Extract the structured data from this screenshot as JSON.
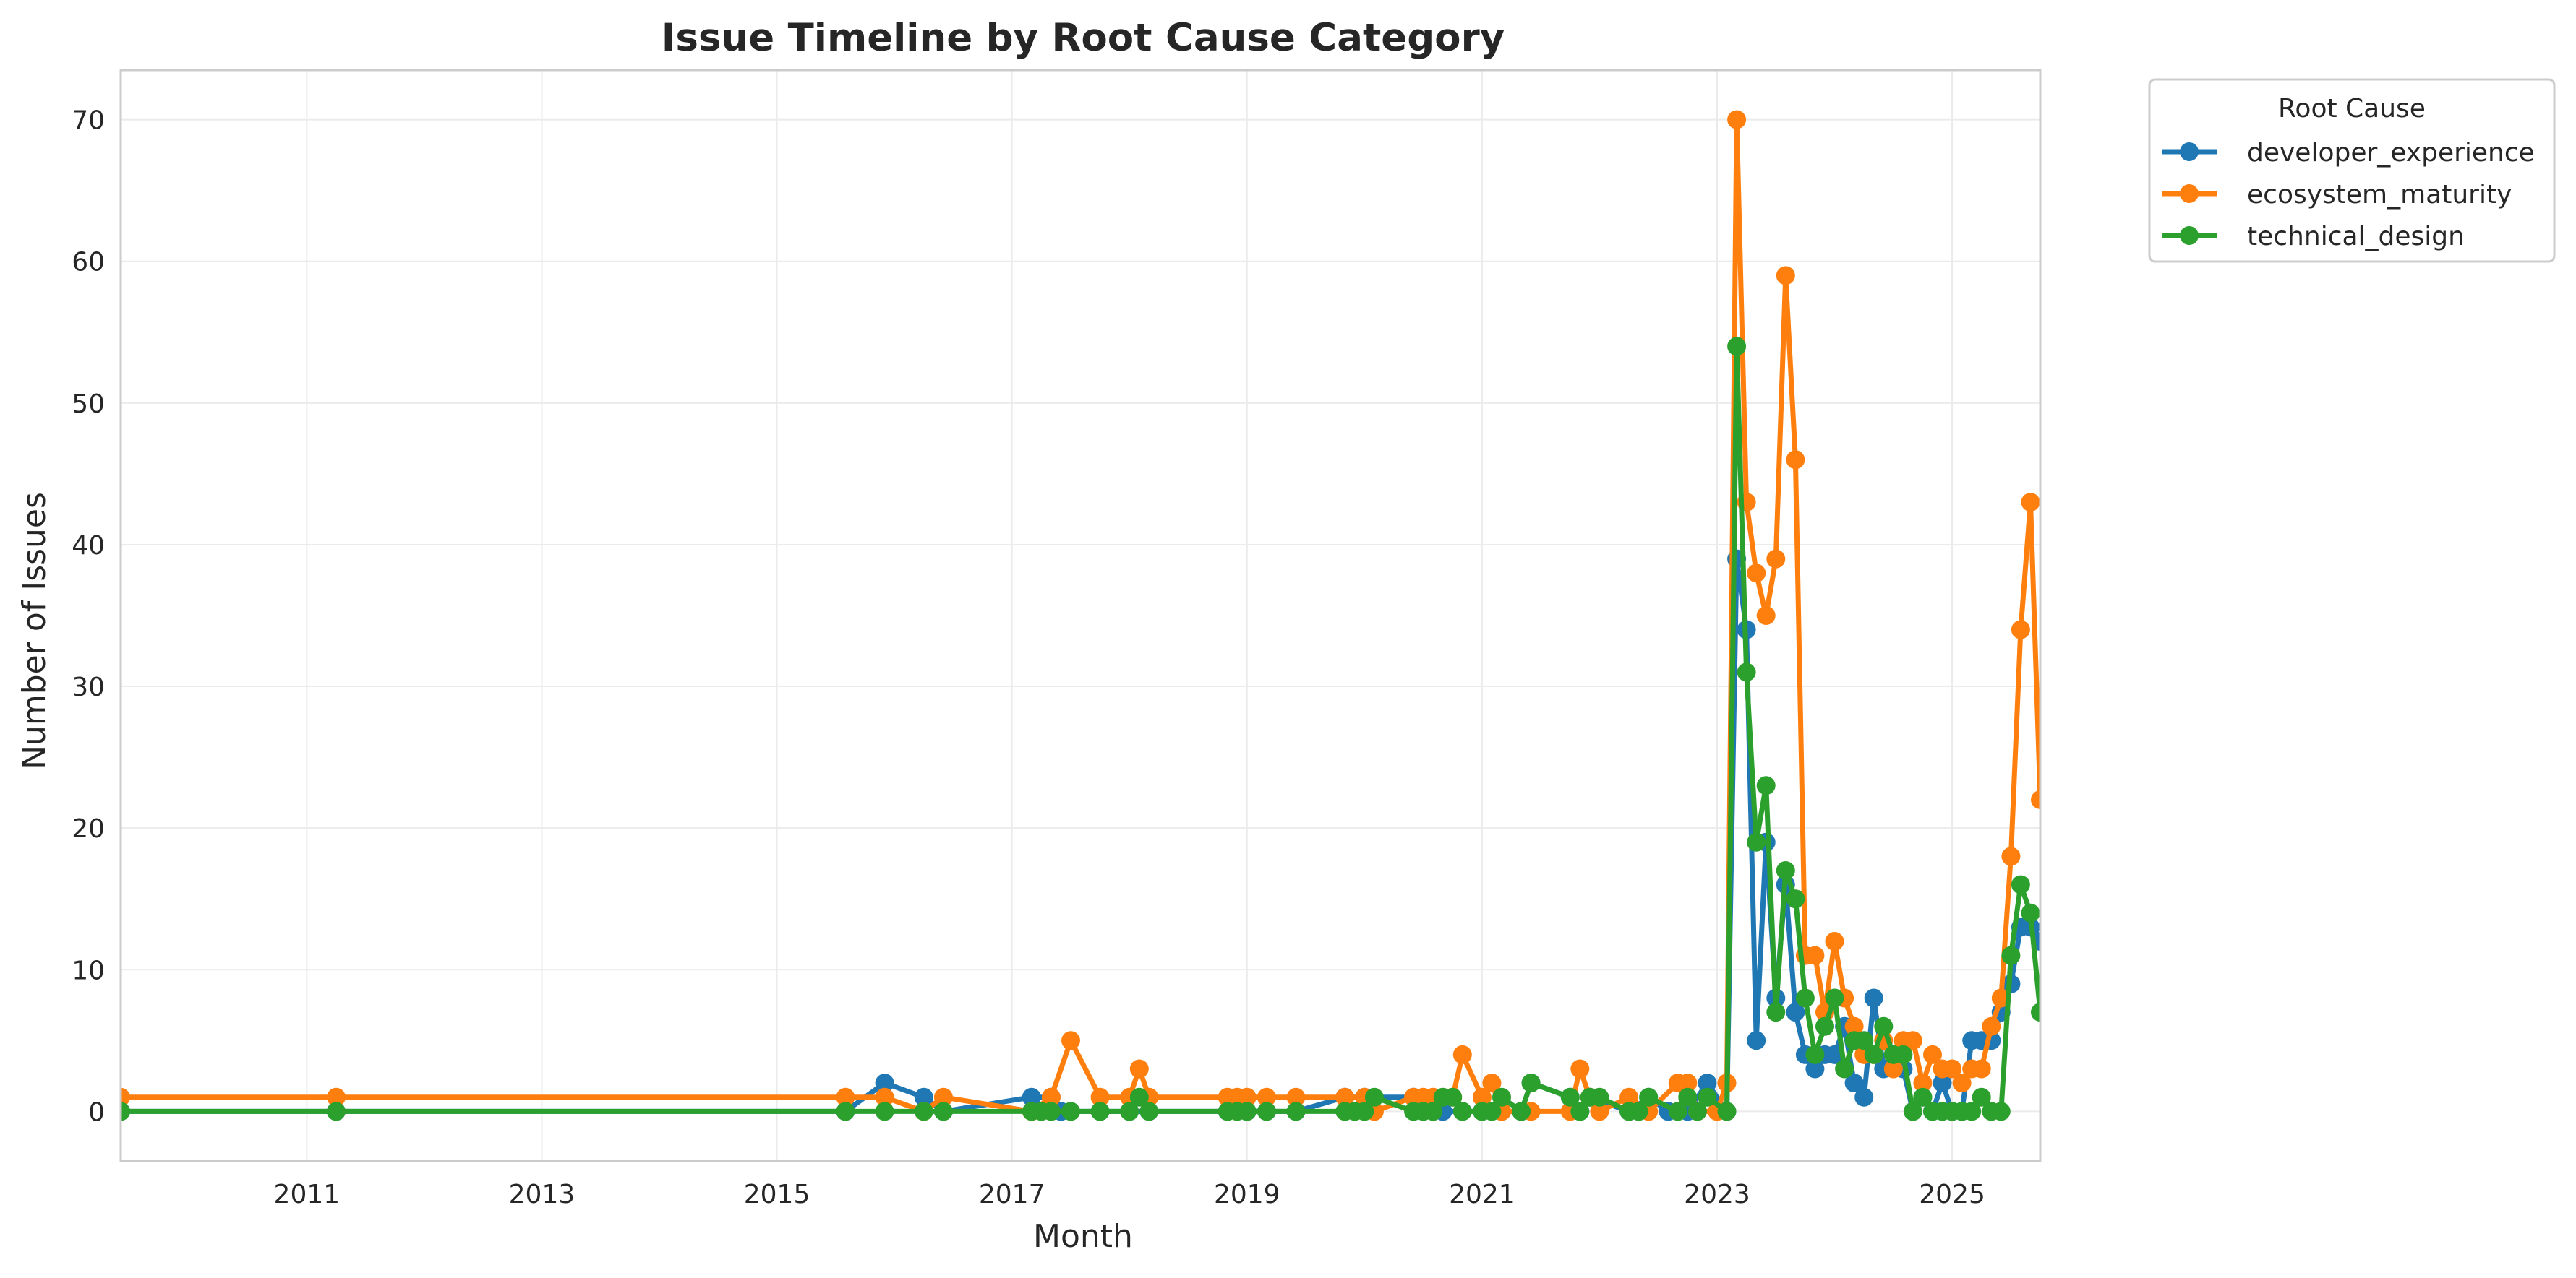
{
  "chart_data": {
    "type": "line",
    "title": "Issue Timeline by Root Cause Category",
    "xlabel": "Month",
    "ylabel": "Number of Issues",
    "x_axis": {
      "type": "date",
      "range": [
        "2009-06",
        "2025-10"
      ],
      "tick_labels": [
        "2011",
        "2013",
        "2015",
        "2017",
        "2019",
        "2021",
        "2023",
        "2025"
      ]
    },
    "y_axis": {
      "range": [
        -3.5,
        73.5
      ],
      "tick_values": [
        0,
        10,
        20,
        30,
        40,
        50,
        60,
        70
      ],
      "tick_labels": [
        "0",
        "10",
        "20",
        "30",
        "40",
        "50",
        "60",
        "70"
      ]
    },
    "grid": true,
    "legend": {
      "title": "Root Cause",
      "placement": "outside top-right"
    },
    "series": [
      {
        "name": "developer_experience",
        "color": "#1f77b4",
        "points": [
          [
            "2009-06",
            0
          ],
          [
            "2011-04",
            0
          ],
          [
            "2015-08",
            0
          ],
          [
            "2015-12",
            2
          ],
          [
            "2016-04",
            1
          ],
          [
            "2016-06",
            0
          ],
          [
            "2017-03",
            1
          ],
          [
            "2017-05",
            1
          ],
          [
            "2017-06",
            0
          ],
          [
            "2017-10",
            0
          ],
          [
            "2018-01",
            0
          ],
          [
            "2018-03",
            0
          ],
          [
            "2018-11",
            0
          ],
          [
            "2019-01",
            0
          ],
          [
            "2019-03",
            0
          ],
          [
            "2019-06",
            0
          ],
          [
            "2019-11",
            1
          ],
          [
            "2020-01",
            1
          ],
          [
            "2020-06",
            1
          ],
          [
            "2020-09",
            0
          ],
          [
            "2020-11",
            0
          ],
          [
            "2021-01",
            0
          ],
          [
            "2021-03",
            0
          ],
          [
            "2021-05",
            0
          ],
          [
            "2021-06",
            2
          ],
          [
            "2021-10",
            1
          ],
          [
            "2021-11",
            0
          ],
          [
            "2021-12",
            1
          ],
          [
            "2022-04",
            0
          ],
          [
            "2022-06",
            1
          ],
          [
            "2022-08",
            0
          ],
          [
            "2022-10",
            0
          ],
          [
            "2022-12",
            2
          ],
          [
            "2023-02",
            0
          ],
          [
            "2023-03",
            39
          ],
          [
            "2023-04",
            34
          ],
          [
            "2023-05",
            5
          ],
          [
            "2023-06",
            19
          ],
          [
            "2023-07",
            8
          ],
          [
            "2023-08",
            16
          ],
          [
            "2023-09",
            7
          ],
          [
            "2023-10",
            4
          ],
          [
            "2023-11",
            3
          ],
          [
            "2023-12",
            4
          ],
          [
            "2024-01",
            4
          ],
          [
            "2024-02",
            6
          ],
          [
            "2024-03",
            2
          ],
          [
            "2024-04",
            1
          ],
          [
            "2024-05",
            8
          ],
          [
            "2024-06",
            3
          ],
          [
            "2024-07",
            4
          ],
          [
            "2024-08",
            3
          ],
          [
            "2024-09",
            0
          ],
          [
            "2024-10",
            1
          ],
          [
            "2024-11",
            0
          ],
          [
            "2024-12",
            2
          ],
          [
            "2025-01",
            0
          ],
          [
            "2025-02",
            0
          ],
          [
            "2025-03",
            5
          ],
          [
            "2025-04",
            5
          ],
          [
            "2025-05",
            5
          ],
          [
            "2025-06",
            7
          ],
          [
            "2025-07",
            9
          ],
          [
            "2025-08",
            13
          ],
          [
            "2025-09",
            13
          ],
          [
            "2025-10",
            12
          ]
        ]
      },
      {
        "name": "ecosystem_maturity",
        "color": "#ff7f0e",
        "points": [
          [
            "2009-06",
            1
          ],
          [
            "2011-04",
            1
          ],
          [
            "2015-08",
            1
          ],
          [
            "2015-12",
            1
          ],
          [
            "2016-04",
            0
          ],
          [
            "2016-06",
            1
          ],
          [
            "2017-03",
            0
          ],
          [
            "2017-05",
            1
          ],
          [
            "2017-07",
            5
          ],
          [
            "2017-10",
            1
          ],
          [
            "2018-01",
            1
          ],
          [
            "2018-02",
            3
          ],
          [
            "2018-03",
            1
          ],
          [
            "2018-11",
            1
          ],
          [
            "2018-12",
            1
          ],
          [
            "2019-01",
            1
          ],
          [
            "2019-03",
            1
          ],
          [
            "2019-06",
            1
          ],
          [
            "2019-11",
            1
          ],
          [
            "2020-01",
            1
          ],
          [
            "2020-02",
            0
          ],
          [
            "2020-06",
            1
          ],
          [
            "2020-07",
            1
          ],
          [
            "2020-08",
            1
          ],
          [
            "2020-10",
            1
          ],
          [
            "2020-11",
            4
          ],
          [
            "2021-01",
            1
          ],
          [
            "2021-02",
            2
          ],
          [
            "2021-03",
            0
          ],
          [
            "2021-06",
            0
          ],
          [
            "2021-10",
            0
          ],
          [
            "2021-11",
            3
          ],
          [
            "2021-12",
            1
          ],
          [
            "2022-01",
            0
          ],
          [
            "2022-04",
            1
          ],
          [
            "2022-06",
            0
          ],
          [
            "2022-09",
            2
          ],
          [
            "2022-10",
            2
          ],
          [
            "2022-11",
            0
          ],
          [
            "2023-01",
            0
          ],
          [
            "2023-02",
            2
          ],
          [
            "2023-03",
            70
          ],
          [
            "2023-04",
            43
          ],
          [
            "2023-05",
            38
          ],
          [
            "2023-06",
            35
          ],
          [
            "2023-07",
            39
          ],
          [
            "2023-08",
            59
          ],
          [
            "2023-09",
            46
          ],
          [
            "2023-10",
            11
          ],
          [
            "2023-11",
            11
          ],
          [
            "2023-12",
            7
          ],
          [
            "2024-01",
            12
          ],
          [
            "2024-02",
            8
          ],
          [
            "2024-03",
            6
          ],
          [
            "2024-04",
            4
          ],
          [
            "2024-05",
            4
          ],
          [
            "2024-06",
            5
          ],
          [
            "2024-07",
            3
          ],
          [
            "2024-08",
            5
          ],
          [
            "2024-09",
            5
          ],
          [
            "2024-10",
            2
          ],
          [
            "2024-11",
            4
          ],
          [
            "2024-12",
            3
          ],
          [
            "2025-01",
            3
          ],
          [
            "2025-02",
            2
          ],
          [
            "2025-03",
            3
          ],
          [
            "2025-04",
            3
          ],
          [
            "2025-05",
            6
          ],
          [
            "2025-06",
            8
          ],
          [
            "2025-07",
            18
          ],
          [
            "2025-08",
            34
          ],
          [
            "2025-09",
            43
          ],
          [
            "2025-10",
            22
          ]
        ]
      },
      {
        "name": "technical_design",
        "color": "#2ca02c",
        "points": [
          [
            "2009-06",
            0
          ],
          [
            "2011-04",
            0
          ],
          [
            "2015-08",
            0
          ],
          [
            "2015-12",
            0
          ],
          [
            "2016-04",
            0
          ],
          [
            "2016-06",
            0
          ],
          [
            "2017-03",
            0
          ],
          [
            "2017-04",
            0
          ],
          [
            "2017-05",
            0
          ],
          [
            "2017-07",
            0
          ],
          [
            "2017-10",
            0
          ],
          [
            "2018-01",
            0
          ],
          [
            "2018-02",
            1
          ],
          [
            "2018-03",
            0
          ],
          [
            "2018-11",
            0
          ],
          [
            "2018-12",
            0
          ],
          [
            "2019-01",
            0
          ],
          [
            "2019-03",
            0
          ],
          [
            "2019-06",
            0
          ],
          [
            "2019-11",
            0
          ],
          [
            "2019-12",
            0
          ],
          [
            "2020-01",
            0
          ],
          [
            "2020-02",
            1
          ],
          [
            "2020-06",
            0
          ],
          [
            "2020-07",
            0
          ],
          [
            "2020-08",
            0
          ],
          [
            "2020-09",
            1
          ],
          [
            "2020-10",
            1
          ],
          [
            "2020-11",
            0
          ],
          [
            "2021-01",
            0
          ],
          [
            "2021-02",
            0
          ],
          [
            "2021-03",
            1
          ],
          [
            "2021-05",
            0
          ],
          [
            "2021-06",
            2
          ],
          [
            "2021-10",
            1
          ],
          [
            "2021-11",
            0
          ],
          [
            "2021-12",
            1
          ],
          [
            "2022-01",
            1
          ],
          [
            "2022-04",
            0
          ],
          [
            "2022-05",
            0
          ],
          [
            "2022-06",
            1
          ],
          [
            "2022-09",
            0
          ],
          [
            "2022-10",
            1
          ],
          [
            "2022-11",
            0
          ],
          [
            "2022-12",
            1
          ],
          [
            "2023-02",
            0
          ],
          [
            "2023-03",
            54
          ],
          [
            "2023-04",
            31
          ],
          [
            "2023-05",
            19
          ],
          [
            "2023-06",
            23
          ],
          [
            "2023-07",
            7
          ],
          [
            "2023-08",
            17
          ],
          [
            "2023-09",
            15
          ],
          [
            "2023-10",
            8
          ],
          [
            "2023-11",
            4
          ],
          [
            "2023-12",
            6
          ],
          [
            "2024-01",
            8
          ],
          [
            "2024-02",
            3
          ],
          [
            "2024-03",
            5
          ],
          [
            "2024-04",
            5
          ],
          [
            "2024-05",
            4
          ],
          [
            "2024-06",
            6
          ],
          [
            "2024-07",
            4
          ],
          [
            "2024-08",
            4
          ],
          [
            "2024-09",
            0
          ],
          [
            "2024-10",
            1
          ],
          [
            "2024-11",
            0
          ],
          [
            "2024-12",
            0
          ],
          [
            "2025-01",
            0
          ],
          [
            "2025-02",
            0
          ],
          [
            "2025-03",
            0
          ],
          [
            "2025-04",
            1
          ],
          [
            "2025-05",
            0
          ],
          [
            "2025-06",
            0
          ],
          [
            "2025-07",
            11
          ],
          [
            "2025-08",
            16
          ],
          [
            "2025-09",
            14
          ],
          [
            "2025-10",
            7
          ]
        ]
      }
    ]
  }
}
